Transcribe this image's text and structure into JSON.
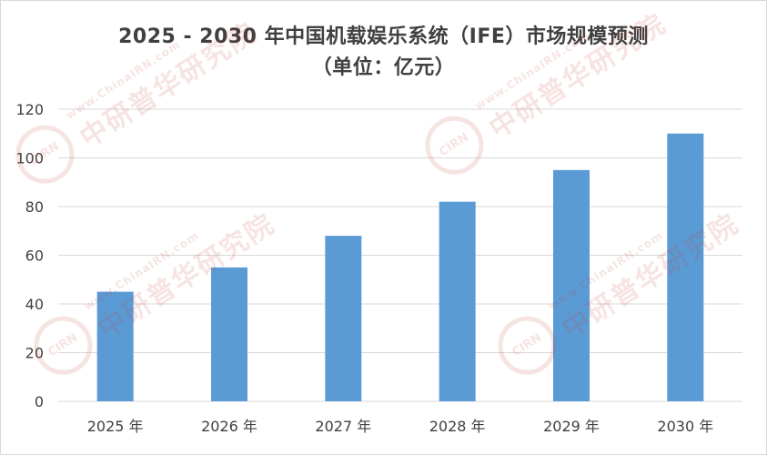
{
  "chart_data": {
    "type": "bar",
    "title_line1": "2025 - 2030 年中国机载娱乐系统（IFE）市场规模预测",
    "title_line2": "（单位：亿元）",
    "categories": [
      "2025 年",
      "2026 年",
      "2027 年",
      "2028 年",
      "2029 年",
      "2030 年"
    ],
    "values": [
      45,
      55,
      68,
      82,
      95,
      110
    ],
    "yticks": [
      "0",
      "20",
      "40",
      "60",
      "80",
      "100",
      "120"
    ],
    "ylim": [
      0,
      120
    ],
    "grid": true,
    "bar_color": "#5B9BD5"
  },
  "watermark": {
    "logo": "CIRN",
    "url": "www.ChinaIRN.com",
    "name": "中研普华研究院"
  }
}
